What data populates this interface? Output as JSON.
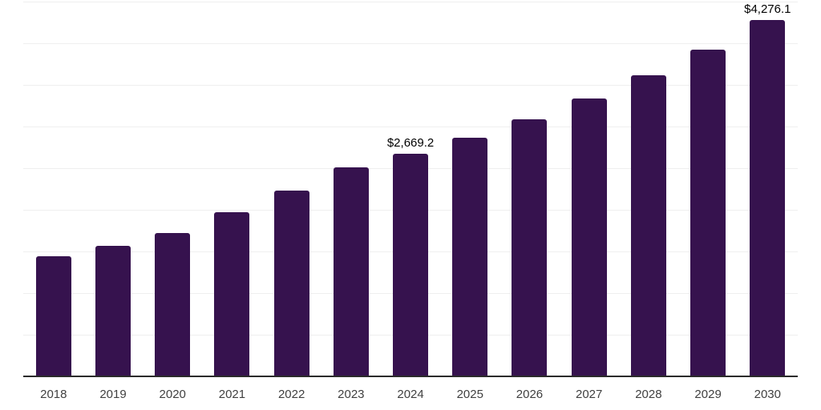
{
  "chart_data": {
    "type": "bar",
    "title": "",
    "xlabel": "",
    "ylabel": "",
    "categories": [
      "2018",
      "2019",
      "2020",
      "2021",
      "2022",
      "2023",
      "2024",
      "2025",
      "2026",
      "2027",
      "2028",
      "2029",
      "2030"
    ],
    "values": [
      1440,
      1570,
      1720,
      1970,
      2235,
      2505,
      2669.2,
      2865,
      3085,
      3335,
      3620,
      3925,
      4276.1
    ],
    "value_labels": {
      "2024": "$2,669.2",
      "2030": "$4,276.1"
    },
    "ylim": [
      0,
      4500
    ],
    "gridline_step": 500,
    "grid": "horizontal",
    "legend_position": "none",
    "colors": {
      "bar": "#36124E",
      "gridline": "#efefef",
      "axis_line": "#2b2b2b",
      "tick_label": "#404040",
      "value_label": "#000000",
      "background": "#ffffff"
    }
  }
}
